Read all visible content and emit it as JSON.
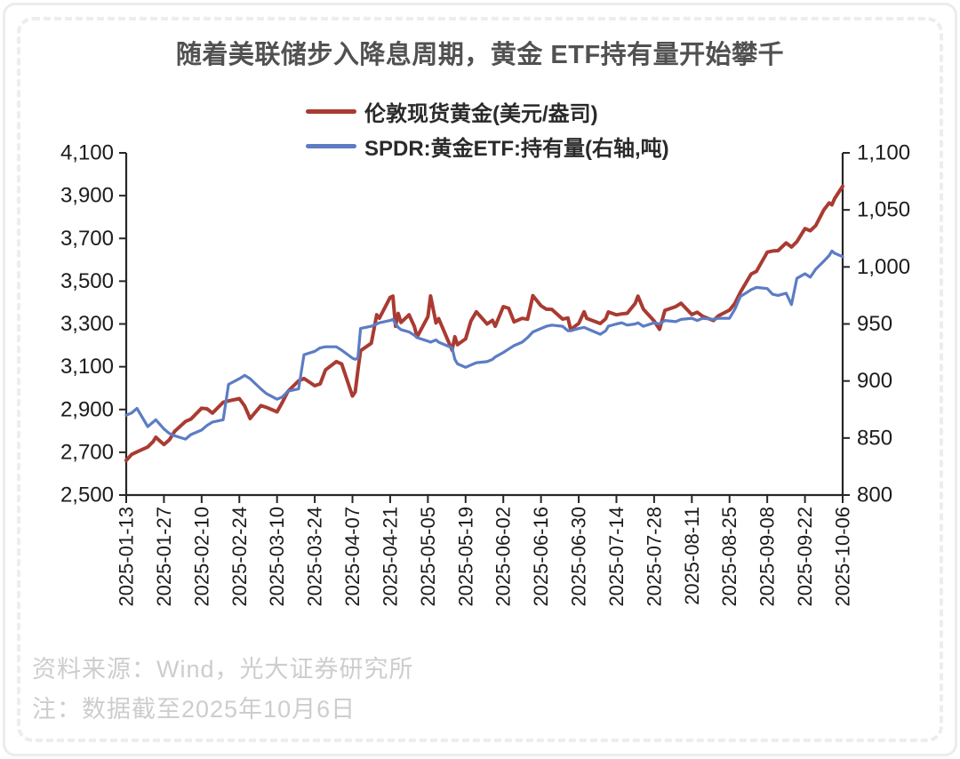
{
  "title": "随着美联储步入降息周期，黄金 ETF持有量开始攀千",
  "legend": [
    {
      "label": "伦敦现货黄金(美元/盎司)",
      "color": "#A93B32"
    },
    {
      "label": "SPDR:黄金ETF:持有量(右轴,吨)",
      "color": "#5C7CC4"
    }
  ],
  "footer": {
    "source": "资料来源：Wind，光大证券研究所",
    "note": "注：数据截至2025年10月6日"
  },
  "colors": {
    "axis": "#262626",
    "tick_text": "#1c1c1c",
    "title_text": "#515151",
    "footnote_text": "#cdcdcd"
  },
  "chart_data": {
    "type": "line",
    "title": "随着美联储步入降息周期，黄金 ETF持有量开始攀千",
    "grid": false,
    "legend_position": "top-center",
    "x_range": [
      "2025-01-13",
      "2025-10-06"
    ],
    "x_ticks": [
      "2025-01-13",
      "2025-01-27",
      "2025-02-10",
      "2025-02-24",
      "2025-03-10",
      "2025-03-24",
      "2025-04-07",
      "2025-04-21",
      "2025-05-05",
      "2025-05-19",
      "2025-06-02",
      "2025-06-16",
      "2025-06-30",
      "2025-07-14",
      "2025-07-28",
      "2025-08-11",
      "2025-08-25",
      "2025-09-08",
      "2025-09-22",
      "2025-10-06"
    ],
    "left_axis": {
      "min": 2500,
      "max": 4100,
      "step": 200
    },
    "right_axis": {
      "min": 800,
      "max": 1100,
      "step": 50
    },
    "dates": [
      "2025-01-13",
      "2025-01-15",
      "2025-01-17",
      "2025-01-21",
      "2025-01-23",
      "2025-01-24",
      "2025-01-27",
      "2025-01-29",
      "2025-01-31",
      "2025-02-04",
      "2025-02-06",
      "2025-02-10",
      "2025-02-12",
      "2025-02-14",
      "2025-02-18",
      "2025-02-20",
      "2025-02-24",
      "2025-02-26",
      "2025-02-28",
      "2025-03-04",
      "2025-03-06",
      "2025-03-10",
      "2025-03-12",
      "2025-03-14",
      "2025-03-18",
      "2025-03-20",
      "2025-03-24",
      "2025-03-26",
      "2025-03-28",
      "2025-04-01",
      "2025-04-03",
      "2025-04-07",
      "2025-04-08",
      "2025-04-09",
      "2025-04-10",
      "2025-04-14",
      "2025-04-16",
      "2025-04-17",
      "2025-04-21",
      "2025-04-22",
      "2025-04-23",
      "2025-04-24",
      "2025-04-25",
      "2025-04-28",
      "2025-04-30",
      "2025-05-01",
      "2025-05-05",
      "2025-05-06",
      "2025-05-08",
      "2025-05-09",
      "2025-05-12",
      "2025-05-14",
      "2025-05-15",
      "2025-05-16",
      "2025-05-19",
      "2025-05-21",
      "2025-05-23",
      "2025-05-27",
      "2025-05-29",
      "2025-05-30",
      "2025-06-02",
      "2025-06-04",
      "2025-06-06",
      "2025-06-09",
      "2025-06-11",
      "2025-06-13",
      "2025-06-16",
      "2025-06-18",
      "2025-06-20",
      "2025-06-24",
      "2025-06-26",
      "2025-06-27",
      "2025-06-30",
      "2025-07-02",
      "2025-07-03",
      "2025-07-08",
      "2025-07-10",
      "2025-07-11",
      "2025-07-14",
      "2025-07-16",
      "2025-07-18",
      "2025-07-21",
      "2025-07-22",
      "2025-07-24",
      "2025-07-28",
      "2025-07-30",
      "2025-08-01",
      "2025-08-05",
      "2025-08-07",
      "2025-08-11",
      "2025-08-13",
      "2025-08-15",
      "2025-08-19",
      "2025-08-21",
      "2025-08-25",
      "2025-08-27",
      "2025-08-29",
      "2025-09-02",
      "2025-09-04",
      "2025-09-08",
      "2025-09-10",
      "2025-09-12",
      "2025-09-15",
      "2025-09-17",
      "2025-09-19",
      "2025-09-22",
      "2025-09-24",
      "2025-09-26",
      "2025-09-29",
      "2025-10-01",
      "2025-10-02",
      "2025-10-03",
      "2025-10-06"
    ],
    "series": [
      {
        "name": "伦敦现货黄金(美元/盎司)",
        "axis": "left",
        "color": "#A93B32",
        "values": [
          2662,
          2690,
          2702,
          2725,
          2750,
          2770,
          2736,
          2758,
          2798,
          2844,
          2855,
          2906,
          2903,
          2883,
          2934,
          2940,
          2951,
          2916,
          2858,
          2918,
          2910,
          2889,
          2934,
          2984,
          3034,
          3045,
          3011,
          3020,
          3085,
          3124,
          3113,
          2963,
          2982,
          3082,
          3175,
          3210,
          3343,
          3327,
          3424,
          3430,
          3289,
          3349,
          3307,
          3343,
          3288,
          3239,
          3334,
          3431,
          3305,
          3325,
          3236,
          3178,
          3240,
          3203,
          3230,
          3314,
          3357,
          3300,
          3317,
          3289,
          3381,
          3373,
          3310,
          3326,
          3322,
          3432,
          3385,
          3369,
          3368,
          3323,
          3328,
          3274,
          3303,
          3357,
          3326,
          3302,
          3324,
          3356,
          3343,
          3347,
          3350,
          3397,
          3430,
          3369,
          3314,
          3275,
          3363,
          3381,
          3397,
          3344,
          3355,
          3336,
          3316,
          3339,
          3365,
          3397,
          3448,
          3533,
          3546,
          3636,
          3641,
          3643,
          3679,
          3660,
          3685,
          3746,
          3736,
          3760,
          3833,
          3866,
          3857,
          3886,
          3944
        ]
      },
      {
        "name": "SPDR:黄金ETF:持有量(右轴,吨)",
        "axis": "right",
        "color": "#5C7CC4",
        "values": [
          870,
          872,
          876,
          860,
          864,
          866,
          858,
          854,
          852,
          849,
          853,
          857,
          861,
          864,
          866,
          897,
          902,
          905,
          902,
          893,
          889,
          884,
          886,
          891,
          893,
          923,
          926,
          929,
          930,
          930,
          927,
          920,
          919,
          920,
          946,
          948,
          950,
          951,
          953,
          954,
          950,
          947,
          945,
          943,
          940,
          938,
          935,
          934,
          936,
          934,
          931,
          929,
          919,
          915,
          912,
          914,
          916,
          917,
          919,
          921,
          925,
          928,
          931,
          934,
          938,
          943,
          946,
          948,
          949,
          948,
          944,
          944,
          946,
          947,
          946,
          941,
          944,
          948,
          950,
          951,
          949,
          950,
          951,
          948,
          951,
          950,
          953,
          952,
          954,
          955,
          953,
          955,
          954,
          955,
          955,
          963,
          974,
          980,
          982,
          981,
          976,
          975,
          977,
          967,
          990,
          994,
          991,
          998,
          1005,
          1010,
          1014,
          1012,
          1009
        ]
      }
    ]
  }
}
